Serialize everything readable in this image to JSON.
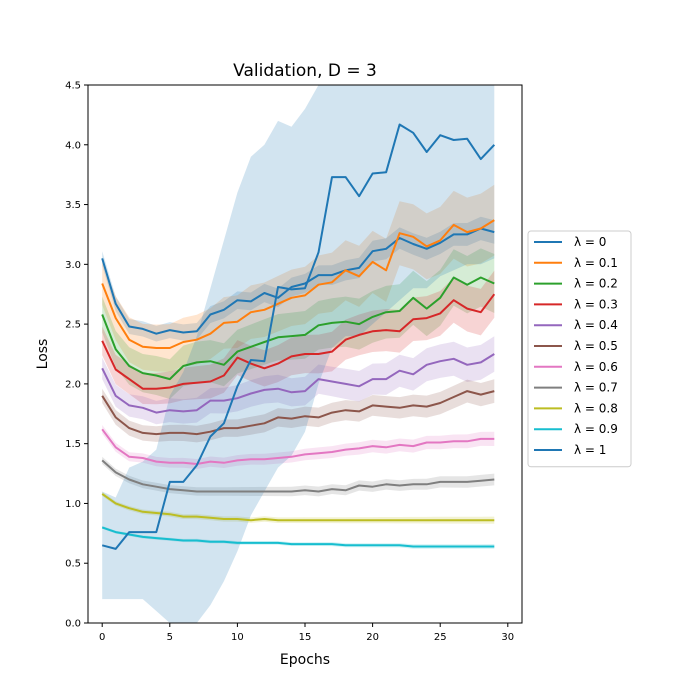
{
  "chart_data": {
    "type": "line",
    "title": "Validation, D = 3",
    "xlabel": "Epochs",
    "ylabel": "Loss",
    "xlim": [
      -1.05,
      31.05
    ],
    "ylim": [
      0.0,
      4.5
    ],
    "xticks": [
      0,
      5,
      10,
      15,
      20,
      25,
      30
    ],
    "xtick_labels": [
      "0",
      "5",
      "10",
      "15",
      "20",
      "25",
      "30"
    ],
    "yticks": [
      0.0,
      0.5,
      1.0,
      1.5,
      2.0,
      2.5,
      3.0,
      3.5,
      4.0,
      4.5
    ],
    "ytick_labels": [
      "0.0",
      "0.5",
      "1.0",
      "1.5",
      "2.0",
      "2.5",
      "3.0",
      "3.5",
      "4.0",
      "4.5"
    ],
    "grid": false,
    "legend_position": "right-outside",
    "x": [
      0,
      1,
      2,
      3,
      4,
      5,
      6,
      7,
      8,
      9,
      10,
      11,
      12,
      13,
      14,
      15,
      16,
      17,
      18,
      19,
      20,
      21,
      22,
      23,
      24,
      25,
      26,
      27,
      28,
      29
    ],
    "series": [
      {
        "name": "λ = 0",
        "color": "#1f77b4",
        "band": 0.1,
        "values": [
          3.05,
          2.67,
          2.48,
          2.46,
          2.42,
          2.45,
          2.43,
          2.44,
          2.58,
          2.62,
          2.7,
          2.69,
          2.76,
          2.72,
          2.81,
          2.84,
          2.91,
          2.91,
          2.95,
          2.97,
          3.11,
          3.13,
          3.22,
          3.17,
          3.13,
          3.18,
          3.25,
          3.25,
          3.3,
          3.27
        ]
      },
      {
        "name": "λ = 0.1",
        "color": "#ff7f0e",
        "band": 0.3,
        "values": [
          2.84,
          2.55,
          2.37,
          2.31,
          2.3,
          2.3,
          2.35,
          2.37,
          2.42,
          2.51,
          2.52,
          2.6,
          2.62,
          2.67,
          2.72,
          2.74,
          2.83,
          2.85,
          2.95,
          2.9,
          3.02,
          2.95,
          3.26,
          3.23,
          3.15,
          3.2,
          3.33,
          3.27,
          3.3,
          3.37
        ]
      },
      {
        "name": "λ = 0.2",
        "color": "#2ca02c",
        "band": 0.25,
        "values": [
          2.58,
          2.29,
          2.15,
          2.09,
          2.07,
          2.04,
          2.15,
          2.18,
          2.19,
          2.16,
          2.27,
          2.31,
          2.35,
          2.39,
          2.4,
          2.41,
          2.49,
          2.51,
          2.52,
          2.5,
          2.56,
          2.6,
          2.61,
          2.72,
          2.63,
          2.72,
          2.89,
          2.83,
          2.89,
          2.84
        ]
      },
      {
        "name": "λ = 0.3",
        "color": "#d62728",
        "band": 0.2,
        "values": [
          2.36,
          2.12,
          2.04,
          1.96,
          1.96,
          1.97,
          2.0,
          2.01,
          2.02,
          2.07,
          2.22,
          2.17,
          2.13,
          2.17,
          2.23,
          2.25,
          2.25,
          2.27,
          2.37,
          2.41,
          2.44,
          2.45,
          2.44,
          2.54,
          2.55,
          2.59,
          2.7,
          2.63,
          2.6,
          2.75
        ]
      },
      {
        "name": "λ = 0.4",
        "color": "#9467bd",
        "band": 0.15,
        "values": [
          2.13,
          1.9,
          1.82,
          1.8,
          1.76,
          1.78,
          1.77,
          1.78,
          1.86,
          1.86,
          1.88,
          1.92,
          1.95,
          1.96,
          1.93,
          1.94,
          2.04,
          2.02,
          2.0,
          1.98,
          2.04,
          2.04,
          2.11,
          2.08,
          2.16,
          2.19,
          2.21,
          2.16,
          2.18,
          2.25
        ]
      },
      {
        "name": "λ = 0.5",
        "color": "#8c564b",
        "band": 0.1,
        "values": [
          1.9,
          1.72,
          1.63,
          1.59,
          1.58,
          1.59,
          1.59,
          1.58,
          1.6,
          1.63,
          1.63,
          1.65,
          1.67,
          1.72,
          1.71,
          1.73,
          1.72,
          1.76,
          1.78,
          1.77,
          1.82,
          1.81,
          1.8,
          1.82,
          1.81,
          1.84,
          1.89,
          1.94,
          1.91,
          1.94
        ]
      },
      {
        "name": "λ = 0.6",
        "color": "#e377c2",
        "band": 0.06,
        "values": [
          1.62,
          1.47,
          1.39,
          1.38,
          1.35,
          1.34,
          1.34,
          1.33,
          1.35,
          1.34,
          1.36,
          1.37,
          1.37,
          1.38,
          1.39,
          1.41,
          1.42,
          1.43,
          1.45,
          1.46,
          1.48,
          1.47,
          1.49,
          1.48,
          1.51,
          1.51,
          1.52,
          1.52,
          1.54,
          1.54
        ]
      },
      {
        "name": "λ = 0.7",
        "color": "#7f7f7f",
        "band": 0.05,
        "values": [
          1.36,
          1.26,
          1.2,
          1.16,
          1.14,
          1.12,
          1.11,
          1.1,
          1.1,
          1.1,
          1.1,
          1.1,
          1.1,
          1.1,
          1.1,
          1.11,
          1.1,
          1.12,
          1.11,
          1.15,
          1.14,
          1.16,
          1.15,
          1.16,
          1.16,
          1.18,
          1.18,
          1.18,
          1.19,
          1.2
        ]
      },
      {
        "name": "λ = 0.8",
        "color": "#bcbd22",
        "band": 0.03,
        "values": [
          1.08,
          1.0,
          0.96,
          0.93,
          0.92,
          0.91,
          0.89,
          0.89,
          0.88,
          0.87,
          0.87,
          0.86,
          0.87,
          0.86,
          0.86,
          0.86,
          0.86,
          0.86,
          0.86,
          0.86,
          0.86,
          0.86,
          0.86,
          0.86,
          0.86,
          0.86,
          0.86,
          0.86,
          0.86,
          0.86
        ]
      },
      {
        "name": "λ = 0.9",
        "color": "#17becf",
        "band": 0.02,
        "values": [
          0.8,
          0.76,
          0.74,
          0.72,
          0.71,
          0.7,
          0.69,
          0.69,
          0.68,
          0.68,
          0.67,
          0.67,
          0.67,
          0.67,
          0.66,
          0.66,
          0.66,
          0.66,
          0.65,
          0.65,
          0.65,
          0.65,
          0.65,
          0.64,
          0.64,
          0.64,
          0.64,
          0.64,
          0.64,
          0.64
        ]
      },
      {
        "name": "λ = 1",
        "color": "#1f77b4",
        "band": "wide",
        "values": [
          0.65,
          0.62,
          0.76,
          0.76,
          0.76,
          1.18,
          1.18,
          1.32,
          1.56,
          1.67,
          1.98,
          2.2,
          2.19,
          2.81,
          2.79,
          2.8,
          3.1,
          3.73,
          3.73,
          3.57,
          3.76,
          3.77,
          4.17,
          4.1,
          3.94,
          4.08,
          4.04,
          4.05,
          3.88,
          4.0
        ],
        "lower": [
          0.2,
          0.2,
          0.2,
          0.2,
          0.1,
          0.0,
          0.0,
          0.0,
          0.15,
          0.35,
          0.6,
          0.9,
          1.1,
          1.3,
          1.4,
          1.6,
          2.0,
          2.3,
          2.4,
          2.4,
          2.5,
          2.6,
          2.7,
          2.8,
          2.8,
          2.9,
          2.95,
          3.0,
          3.0,
          3.05
        ],
        "upper": [
          1.1,
          1.05,
          1.3,
          1.35,
          1.45,
          1.9,
          2.1,
          2.4,
          2.8,
          3.2,
          3.6,
          3.9,
          4.0,
          4.2,
          4.15,
          4.3,
          4.5,
          4.5,
          4.5,
          4.5,
          4.5,
          4.5,
          4.5,
          4.5,
          4.5,
          4.5,
          4.5,
          4.5,
          4.5,
          4.5
        ]
      }
    ]
  }
}
